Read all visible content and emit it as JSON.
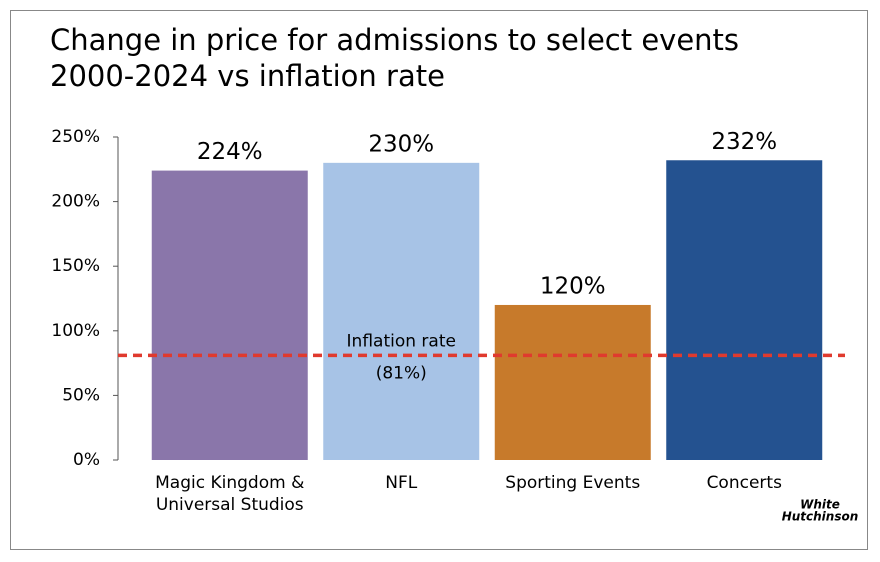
{
  "chart_data": {
    "type": "bar",
    "title": [
      "Change in price for admissions to select events",
      "2000-2024 vs inflation rate"
    ],
    "categories": [
      "Magic Kingdom & Universal Studios",
      "NFL",
      "Sporting Events",
      "Concerts"
    ],
    "values": [
      224,
      230,
      120,
      232
    ],
    "value_labels": [
      "224%",
      "230%",
      "120%",
      "232%"
    ],
    "colors": [
      "#8a76aa",
      "#a7c3e6",
      "#c77a2b",
      "#245290"
    ],
    "ylim": [
      0,
      250
    ],
    "yticks": [
      {
        "value": 0,
        "label": "0%"
      },
      {
        "value": 50,
        "label": "50%"
      },
      {
        "value": 100,
        "label": "100%"
      },
      {
        "value": 150,
        "label": "150%"
      },
      {
        "value": 200,
        "label": "200%"
      },
      {
        "value": 250,
        "label": "250%"
      }
    ],
    "reference_line": {
      "value": 81,
      "label": "Inflation rate",
      "value_label": "(81%)",
      "color": "#e03a2e"
    },
    "logo": [
      "White",
      "Hutchinson"
    ]
  }
}
